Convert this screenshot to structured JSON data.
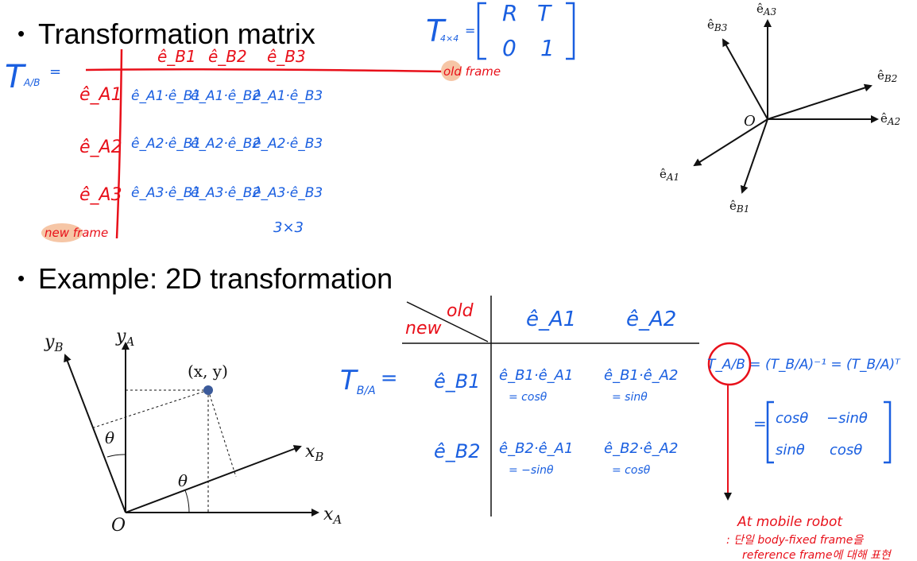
{
  "bullets": {
    "transformation_matrix": "Transformation matrix",
    "example": "Example: 2D transformation"
  },
  "notes_top": {
    "t_prefix": "T",
    "t_sub": "A/B",
    "col_headers": [
      "ê_B1",
      "ê_B2",
      "ê_B3"
    ],
    "row_headers": [
      "ê_A1",
      "ê_A2",
      "ê_A3"
    ],
    "cells": [
      [
        "ê_A1·ê_B1",
        "ê_A1·ê_B2",
        "ê_A1·ê_B3"
      ],
      [
        "ê_A2·ê_B1",
        "ê_A2·ê_B2",
        "ê_A2·ê_B3"
      ],
      [
        "ê_A3·ê_B1",
        "ê_A3·ê_B2",
        "ê_A3·ê_B3"
      ]
    ],
    "old_frame": "old frame",
    "new_frame": "new frame",
    "size": "3×3",
    "t_4x4": "T",
    "t_4x4_sub": "4×4",
    "block": [
      "R",
      "T",
      "0",
      "1"
    ]
  },
  "frame_diagram": {
    "origin": "O",
    "labels": [
      "ê",
      "A3",
      "B3",
      "B2",
      "A2",
      "A1",
      "B1"
    ]
  },
  "example_diagram": {
    "yB": "y",
    "yB_sub": "B",
    "yA": "y",
    "yA_sub": "A",
    "xB": "x",
    "xB_sub": "B",
    "xA": "x",
    "xA_sub": "A",
    "origin": "O",
    "point": "(x, y)",
    "theta": "θ"
  },
  "notes_bottom": {
    "old": "old",
    "new": "new",
    "col_headers": [
      "ê_A1",
      "ê_A2"
    ],
    "t_label": "T",
    "t_sub": "B/A",
    "equals": "=",
    "row_headers": [
      "ê_B1",
      "ê_B2"
    ],
    "cells": [
      "ê_B1·ê_A1",
      "ê_B1·ê_A2",
      "ê_B2·ê_A1",
      "ê_B2·ê_A2"
    ],
    "cell_values": [
      "= cosθ",
      "=  sinθ",
      "= −sinθ",
      "= cosθ"
    ],
    "inverse": "T_A/B = (T_B/A)⁻¹ = (T_B/A)ᵀ",
    "matrix": [
      "cosθ",
      "−sinθ",
      "sinθ",
      "cosθ"
    ],
    "note1": "At mobile robot",
    "note2": ": 단일 body-fixed frame을",
    "note3": "reference frame에 대해 표현"
  }
}
